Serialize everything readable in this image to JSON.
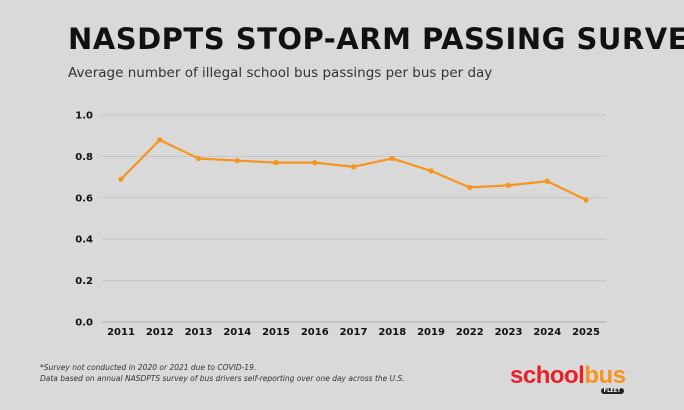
{
  "chart_data": {
    "type": "line",
    "title": "NASDPTS STOP-ARM PASSING SURVEY",
    "subtitle": "Average number of illegal school bus passings per bus per day",
    "categories": [
      "2011",
      "2012",
      "2013",
      "2014",
      "2015",
      "2016",
      "2017",
      "2018",
      "2019",
      "2022",
      "2023",
      "2024",
      "2025"
    ],
    "values": [
      0.69,
      0.88,
      0.79,
      0.78,
      0.77,
      0.77,
      0.75,
      0.79,
      0.73,
      0.65,
      0.66,
      0.68,
      0.59
    ],
    "ylim": [
      0,
      1.0
    ],
    "yticks": [
      "0.0",
      "0.2",
      "0.4",
      "0.6",
      "0.8",
      "1.0"
    ],
    "grid": true,
    "line_color": "#f7941d",
    "grid_color": "#c4c4c4"
  },
  "footnotes": {
    "line1": "*Survey not conducted in 2020 or 2021 due to COVID-19.",
    "line2": "Data based on annual NASDPTS survey of bus drivers self-reporting over one day across the U.S."
  },
  "logo": {
    "word1": "school",
    "word2": "bus",
    "sub": "FLEET",
    "color1": "#e8202a",
    "color2": "#f7941d"
  }
}
